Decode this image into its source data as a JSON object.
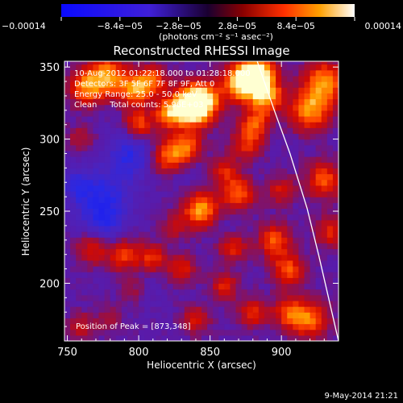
{
  "chart_data": {
    "type": "heatmap",
    "title": "Reconstructed RHESSI Image",
    "xlabel": "Heliocentric X (arcsec)",
    "ylabel": "Heliocentric Y (arcsec)",
    "xlim": [
      748,
      940
    ],
    "ylim": [
      160,
      354
    ],
    "x_ticks": [
      750,
      800,
      850,
      900
    ],
    "y_ticks": [
      200,
      250,
      300,
      350
    ],
    "colorbar": {
      "label": "(photons cm⁻² s⁻¹ asec⁻²)",
      "min": -0.00014,
      "max": 0.00014,
      "ticks": [
        {
          "value": -0.00014,
          "label": "−0.00014"
        },
        {
          "value": -8.4e-05,
          "label": "−8.4e−05"
        },
        {
          "value": -2.8e-05,
          "label": "−2.8e−05"
        },
        {
          "value": 2.8e-05,
          "label": "2.8e−05"
        },
        {
          "value": 8.4e-05,
          "label": "8.4e−05"
        },
        {
          "value": 0.00014,
          "label": "0.00014"
        }
      ]
    },
    "annotations": [
      "10-Aug-2012 01:22:18.000 to 01:28:18.000",
      "Detectors: 3F 5F 6F 7F 8F 9F, Att 0",
      "Energy Range: 25.0 - 50.0 keV",
      "Clean     Total counts: 5.96E+03"
    ],
    "peak_label": "Position of Peak = [873,348]",
    "peak_position": [
      873,
      348
    ],
    "limb": [
      [
        883,
        354
      ],
      [
        895,
        320
      ],
      [
        906,
        290
      ],
      [
        918,
        252
      ],
      [
        926,
        220
      ],
      [
        933,
        190
      ],
      [
        940,
        160
      ]
    ],
    "sources": [
      {
        "x": 835,
        "y": 322,
        "v": 1.0,
        "r": 10
      },
      {
        "x": 845,
        "y": 327,
        "v": 0.85,
        "r": 9
      },
      {
        "x": 883,
        "y": 346,
        "v": 1.0,
        "r": 9
      },
      {
        "x": 872,
        "y": 339,
        "v": 0.9,
        "r": 9
      },
      {
        "x": 890,
        "y": 330,
        "v": 0.75,
        "r": 8
      },
      {
        "x": 777,
        "y": 344,
        "v": 0.8,
        "r": 10
      },
      {
        "x": 798,
        "y": 335,
        "v": 0.75,
        "r": 8
      },
      {
        "x": 762,
        "y": 335,
        "v": 0.6,
        "r": 8
      },
      {
        "x": 810,
        "y": 342,
        "v": 0.55,
        "r": 7
      },
      {
        "x": 800,
        "y": 310,
        "v": 0.65,
        "r": 7
      },
      {
        "x": 820,
        "y": 318,
        "v": 0.55,
        "r": 7
      },
      {
        "x": 822,
        "y": 288,
        "v": 0.75,
        "r": 9
      },
      {
        "x": 835,
        "y": 295,
        "v": 0.5,
        "r": 7
      },
      {
        "x": 844,
        "y": 251,
        "v": 0.8,
        "r": 9
      },
      {
        "x": 870,
        "y": 262,
        "v": 0.65,
        "r": 8
      },
      {
        "x": 876,
        "y": 298,
        "v": 0.5,
        "r": 8
      },
      {
        "x": 860,
        "y": 278,
        "v": 0.45,
        "r": 7
      },
      {
        "x": 866,
        "y": 226,
        "v": 0.5,
        "r": 7
      },
      {
        "x": 895,
        "y": 230,
        "v": 0.6,
        "r": 8
      },
      {
        "x": 905,
        "y": 210,
        "v": 0.6,
        "r": 8
      },
      {
        "x": 900,
        "y": 265,
        "v": 0.4,
        "r": 7
      },
      {
        "x": 920,
        "y": 320,
        "v": 0.75,
        "r": 10
      },
      {
        "x": 930,
        "y": 340,
        "v": 0.75,
        "r": 10
      },
      {
        "x": 930,
        "y": 272,
        "v": 0.6,
        "r": 9
      },
      {
        "x": 935,
        "y": 236,
        "v": 0.45,
        "r": 8
      },
      {
        "x": 790,
        "y": 220,
        "v": 0.55,
        "r": 8
      },
      {
        "x": 810,
        "y": 218,
        "v": 0.5,
        "r": 7
      },
      {
        "x": 768,
        "y": 225,
        "v": 0.5,
        "r": 8
      },
      {
        "x": 796,
        "y": 195,
        "v": 0.4,
        "r": 7
      },
      {
        "x": 830,
        "y": 210,
        "v": 0.45,
        "r": 7
      },
      {
        "x": 860,
        "y": 198,
        "v": 0.45,
        "r": 7
      },
      {
        "x": 880,
        "y": 180,
        "v": 0.5,
        "r": 7
      },
      {
        "x": 920,
        "y": 175,
        "v": 0.65,
        "r": 9
      },
      {
        "x": 905,
        "y": 180,
        "v": 0.55,
        "r": 8
      },
      {
        "x": 840,
        "y": 175,
        "v": 0.4,
        "r": 7
      },
      {
        "x": 760,
        "y": 170,
        "v": 0.35,
        "r": 7
      },
      {
        "x": 780,
        "y": 175,
        "v": 0.3,
        "r": 6
      },
      {
        "x": 760,
        "y": 300,
        "v": 0.3,
        "r": 7
      },
      {
        "x": 825,
        "y": 240,
        "v": 0.35,
        "r": 6
      },
      {
        "x": 882,
        "y": 312,
        "v": 0.55,
        "r": 7
      },
      {
        "x": 775,
        "y": 260,
        "v": -0.45,
        "r": 14
      },
      {
        "x": 795,
        "y": 290,
        "v": -0.45,
        "r": 12
      },
      {
        "x": 775,
        "y": 240,
        "v": -0.35,
        "r": 10
      },
      {
        "x": 755,
        "y": 268,
        "v": -0.3,
        "r": 9
      },
      {
        "x": 800,
        "y": 195,
        "v": -0.2,
        "r": 9
      },
      {
        "x": 830,
        "y": 278,
        "v": -0.2,
        "r": 8
      },
      {
        "x": 860,
        "y": 240,
        "v": -0.15,
        "r": 8
      }
    ]
  },
  "footer": {
    "timestamp": "9-May-2014 21:21"
  },
  "colors": {
    "negative": "#1d1dff",
    "neutral": "#5a1aa8",
    "positive": "#ff4a00",
    "peak": "#ffffd0"
  }
}
